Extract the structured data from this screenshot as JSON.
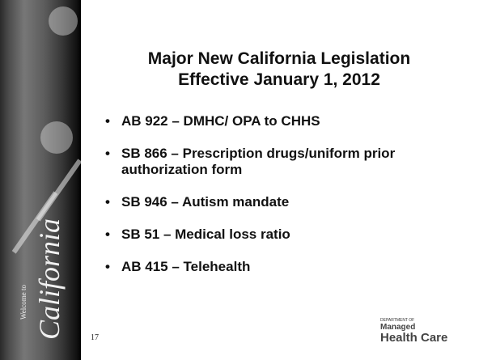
{
  "sidebar": {
    "welcome": "Welcome to",
    "state": "California"
  },
  "title": [
    "Major New California Legislation",
    "Effective January 1, 2012"
  ],
  "bullets": [
    "AB 922 – DMHC/ OPA to CHHS",
    "SB 866 – Prescription drugs/uniform prior authorization form",
    "SB 946 – Autism mandate",
    "SB 51 – Medical loss ratio",
    "AB 415 –  Telehealth"
  ],
  "page_number": "17",
  "logo": {
    "department": "DEPARTMENT OF",
    "managed": "Managed",
    "health": "Health Care"
  }
}
